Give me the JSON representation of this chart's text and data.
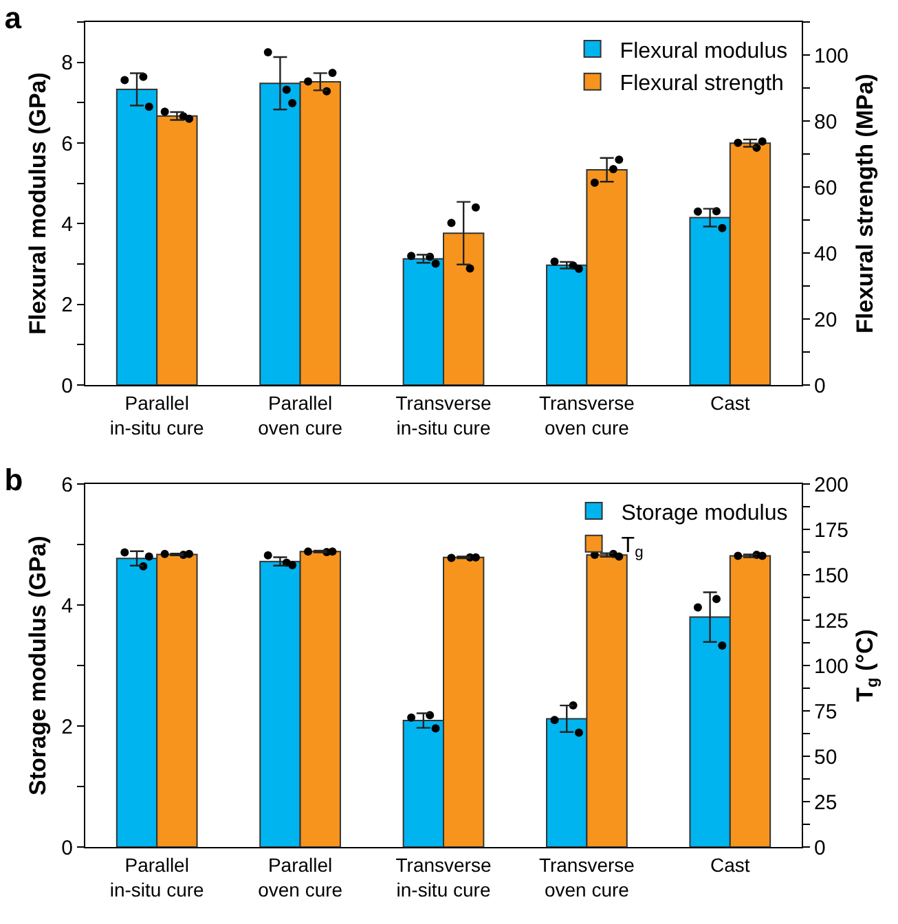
{
  "chart_data": [
    {
      "type": "bar",
      "title": "a",
      "ylabel": "Flexural modulus (GPa)",
      "y2label": "Flexural strength (MPa)",
      "categories": [
        "Parallel\nin-situ cure",
        "Parallel\noven cure",
        "Transverse\nin-situ cure",
        "Transverse\noven cure",
        "Cast"
      ],
      "series": [
        {
          "name": "Flexural modulus",
          "color": "#00b4ef",
          "values": [
            7.33,
            7.48,
            3.13,
            2.97,
            4.15
          ],
          "errors": [
            0.4,
            0.65,
            0.1,
            0.08,
            0.22
          ]
        },
        {
          "name": "Flexural strength",
          "color": "#f7941d",
          "axis": "y2",
          "values": [
            81.5,
            91.9,
            46,
            65.2,
            73.3
          ],
          "errors": [
            1.2,
            2.6,
            9.5,
            3.6,
            1.1
          ]
        },
        {
          "type": "scatter",
          "color": "#000000",
          "x": [
            "Parallel\nin-situ cure",
            "Parallel\nin-situ cure",
            "Parallel\nin-situ cure",
            "Parallel\noven cure",
            "Parallel\noven cure",
            "Parallel\noven cure",
            "Transverse\nin-situ cure",
            "Transverse\nin-situ cure",
            "Transverse\nin-situ cure",
            "Transverse\noven cure",
            "Transverse\noven cure",
            "Transverse\noven cure",
            "Cast",
            "Cast",
            "Cast"
          ],
          "values": [
            7.56,
            6.9,
            7.64,
            8.25,
            6.99,
            7.32,
            3.2,
            3.01,
            3.18,
            3.06,
            2.88,
            2.96,
            4.3,
            3.89,
            4.31
          ]
        },
        {
          "type": "scatter",
          "color": "#000000",
          "axis": "y2",
          "x": [
            "Parallel\nin-situ cure",
            "Parallel\nin-situ cure",
            "Parallel\nin-situ cure",
            "Parallel\noven cure",
            "Parallel\noven cure",
            "Parallel\noven cure",
            "Transverse\nin-situ cure",
            "Transverse\nin-situ cure",
            "Transverse\nin-situ cure",
            "Transverse\noven cure",
            "Transverse\noven cure",
            "Transverse\noven cure",
            "Cast",
            "Cast",
            "Cast"
          ],
          "values": [
            82.8,
            80.7,
            81.4,
            92,
            94.6,
            89,
            49.1,
            53.8,
            35.3,
            61.3,
            68.3,
            65.4,
            73.4,
            73.8,
            71.9
          ]
        }
      ],
      "ylim": [
        0,
        9
      ],
      "yticks": [
        0,
        {
          "value": 1,
          "label": null
        },
        2,
        {
          "value": 3,
          "label": null
        },
        4,
        {
          "value": 5,
          "label": null
        },
        6,
        {
          "value": 7,
          "label": null
        },
        8,
        {
          "value": 9,
          "label": null
        }
      ],
      "y2lim": [
        0,
        110
      ],
      "y2ticks": [
        0,
        {
          "value": 10,
          "label": null
        },
        20,
        {
          "value": 30,
          "label": null
        },
        40,
        {
          "value": 50,
          "label": null
        },
        60,
        {
          "value": 70,
          "label": null
        },
        80,
        {
          "value": 90,
          "label": null
        },
        100,
        {
          "value": 110,
          "label": null
        }
      ],
      "marker": "circle",
      "legend": "top right",
      "grid": false
    },
    {
      "type": "bar",
      "title": "b",
      "ylabel": "Storage modulus (GPa)",
      "y2label": "T$_{g}$ (°C)",
      "categories": [
        "Parallel\nin-situ cure",
        "Parallel\noven cure",
        "Transverse\nin-situ cure",
        "Transverse\noven cure",
        "Cast"
      ],
      "series": [
        {
          "name": "Storage modulus",
          "color": "#00b4ef",
          "values": [
            4.77,
            4.72,
            2.09,
            2.12,
            3.8
          ],
          "errors": [
            0.12,
            0.07,
            0.12,
            0.22,
            0.41
          ]
        },
        {
          "name": "T$_{g}$",
          "color": "#f7941d",
          "axis": "y2",
          "values": [
            161.2,
            162.8,
            159.6,
            160.9,
            160.4
          ],
          "errors": [
            0.5,
            0.5,
            0.5,
            1,
            0.8
          ]
        },
        {
          "type": "scatter",
          "color": "#000000",
          "x": [
            "Parallel\nin-situ cure",
            "Parallel\nin-situ cure",
            "Parallel\nin-situ cure",
            "Parallel\noven cure",
            "Parallel\noven cure",
            "Parallel\noven cure",
            "Transverse\nin-situ cure",
            "Transverse\nin-situ cure",
            "Transverse\nin-situ cure",
            "Transverse\noven cure",
            "Transverse\noven cure",
            "Transverse\noven cure",
            "Cast",
            "Cast",
            "Cast"
          ],
          "values": [
            4.87,
            4.8,
            4.64,
            4.82,
            4.66,
            4.7,
            2.14,
            1.96,
            2.18,
            2.1,
            1.89,
            2.34,
            3.96,
            3.33,
            4.1
          ]
        },
        {
          "type": "scatter",
          "color": "#000000",
          "axis": "y2",
          "x": [
            "Parallel\nin-situ cure",
            "Parallel\nin-situ cure",
            "Parallel\nin-situ cure",
            "Parallel\noven cure",
            "Parallel\noven cure",
            "Parallel\noven cure",
            "Transverse\nin-situ cure",
            "Transverse\nin-situ cure",
            "Transverse\nin-situ cure",
            "Transverse\noven cure",
            "Transverse\noven cure",
            "Transverse\noven cure",
            "Cast",
            "Cast",
            "Cast"
          ],
          "values": [
            161.5,
            161.5,
            161,
            162.8,
            162.8,
            162.5,
            159.3,
            159.6,
            159.6,
            161,
            160,
            161.5,
            160.4,
            160.4,
            161
          ]
        }
      ],
      "ylim": [
        0,
        6
      ],
      "yticks": [
        0,
        {
          "value": 1,
          "label": null
        },
        2,
        {
          "value": 3,
          "label": null
        },
        4,
        {
          "value": 5,
          "label": null
        },
        6
      ],
      "y2lim": [
        0,
        200
      ],
      "y2ticks": [
        0,
        {
          "value": 12.5,
          "label": null
        },
        25,
        {
          "value": 37.5,
          "label": null
        },
        50,
        {
          "value": 62.5,
          "label": null
        },
        75,
        {
          "value": 87.5,
          "label": null
        },
        100,
        {
          "value": 112.5,
          "label": null
        },
        125,
        {
          "value": 137.5,
          "label": null
        },
        150,
        {
          "value": 162.5,
          "label": null
        },
        175,
        {
          "value": 187.5,
          "label": null
        },
        200
      ],
      "marker": "circle",
      "legend": "top right",
      "grid": false
    }
  ]
}
